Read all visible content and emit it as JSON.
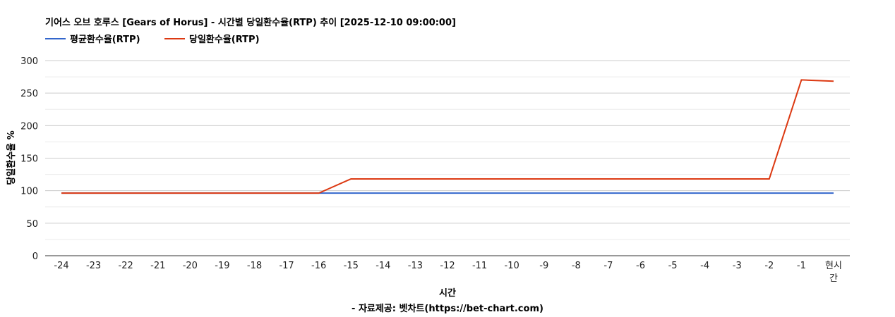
{
  "chart_data": {
    "type": "line",
    "title": "기어스 오브 호루스 [Gears of Horus] - 시간별 당일환수율(RTP) 추이 [2025-12-10 09:00:00]",
    "xlabel": "시간",
    "source": "- 자료제공: 벳차트(https://bet-chart.com)",
    "ylabel": "당일환수율 %",
    "ylim": [
      0,
      300
    ],
    "yticks": [
      0,
      50,
      100,
      150,
      200,
      250,
      300
    ],
    "grid": true,
    "legend_position": "top-left",
    "categories": [
      "-24",
      "-23",
      "-22",
      "-21",
      "-20",
      "-19",
      "-18",
      "-17",
      "-16",
      "-15",
      "-14",
      "-13",
      "-12",
      "-11",
      "-10",
      "-9",
      "-8",
      "-7",
      "-6",
      "-5",
      "-4",
      "-3",
      "-2",
      "-1",
      "현시간"
    ],
    "series": [
      {
        "name": "평균환수율(RTP)",
        "color": "#3366cc",
        "values": [
          96.2,
          96.2,
          96.2,
          96.2,
          96.2,
          96.2,
          96.2,
          96.2,
          96.2,
          96.2,
          96.2,
          96.2,
          96.2,
          96.2,
          96.2,
          96.2,
          96.2,
          96.2,
          96.2,
          96.2,
          96.2,
          96.2,
          96.2,
          96.2,
          96.2
        ]
      },
      {
        "name": "당일환수율(RTP)",
        "color": "#dc3912",
        "values": [
          96.2,
          96.2,
          96.2,
          96.2,
          96.2,
          96.2,
          96.2,
          96.2,
          96.2,
          118.1,
          118.1,
          118.1,
          118.1,
          118.1,
          118.1,
          118.1,
          118.1,
          118.1,
          118.1,
          118.1,
          118.1,
          118.1,
          118.1,
          270.3,
          268.3
        ]
      }
    ]
  }
}
